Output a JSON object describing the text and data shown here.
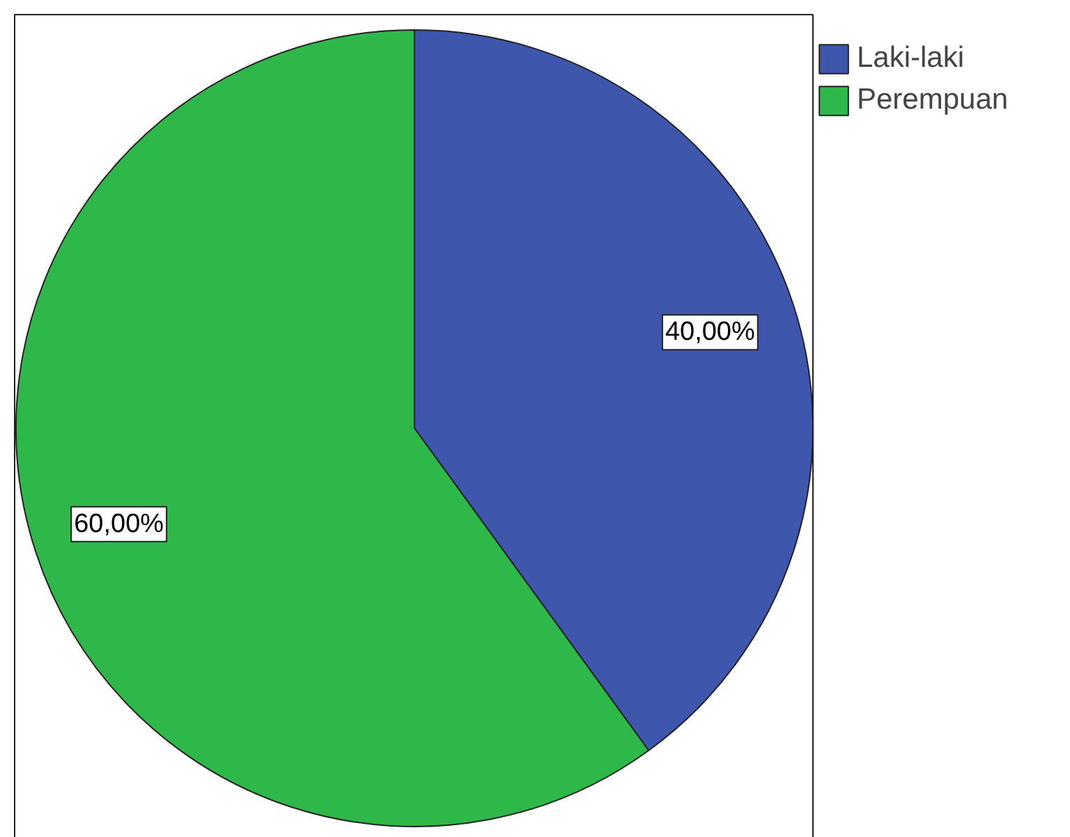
{
  "chart_data": {
    "type": "pie",
    "categories": [
      "Laki-laki",
      "Perempuan"
    ],
    "values": [
      40,
      60
    ],
    "colors": [
      "#3e56ab",
      "#2eb84a"
    ],
    "value_labels": [
      "40,00%",
      "60,00%"
    ],
    "legend": "top right"
  }
}
